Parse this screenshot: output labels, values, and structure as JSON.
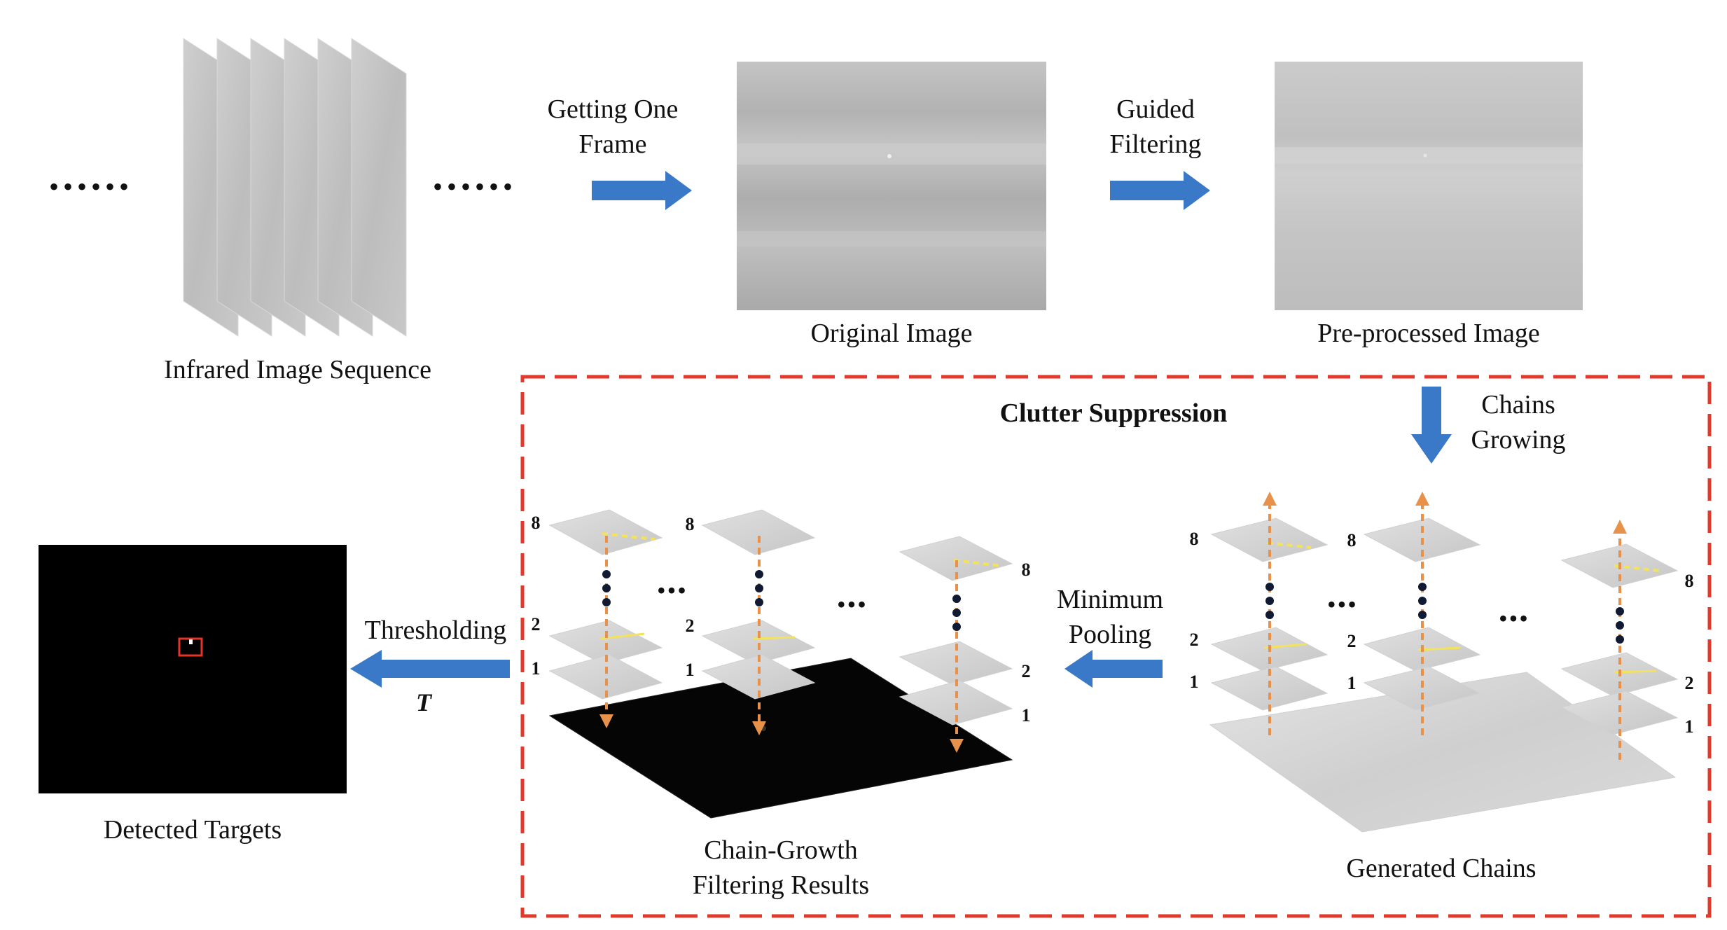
{
  "labels": {
    "sequence": "Infrared Image Sequence",
    "original": "Original Image",
    "preprocessed": "Pre-processed Image",
    "detected": "Detected Targets",
    "cgf_line1": "Chain-Growth",
    "cgf_line2": "Filtering Results",
    "generated": "Generated Chains"
  },
  "arrows": {
    "getting_line1": "Getting One",
    "getting_line2": "Frame",
    "guided_line1": "Guided",
    "guided_line2": "Filtering",
    "chains_line1": "Chains",
    "chains_line2": "Growing",
    "pooling_line1": "Minimum",
    "pooling_line2": "Pooling",
    "thresholding": "Thresholding",
    "threshold_symbol": "T"
  },
  "box": {
    "title": "Clutter Suppression"
  },
  "layers": {
    "top": "8",
    "mid": "2",
    "bottom": "1"
  },
  "ellipsis": {
    "dots": "••••••",
    "dots3": "•••"
  },
  "colors": {
    "arrow_blue": "#3a78c8",
    "chain_orange": "#e8914a",
    "box_red": "#e03a2c",
    "highlight_yellow": "#f3e35a",
    "target_box": "#e53526"
  }
}
